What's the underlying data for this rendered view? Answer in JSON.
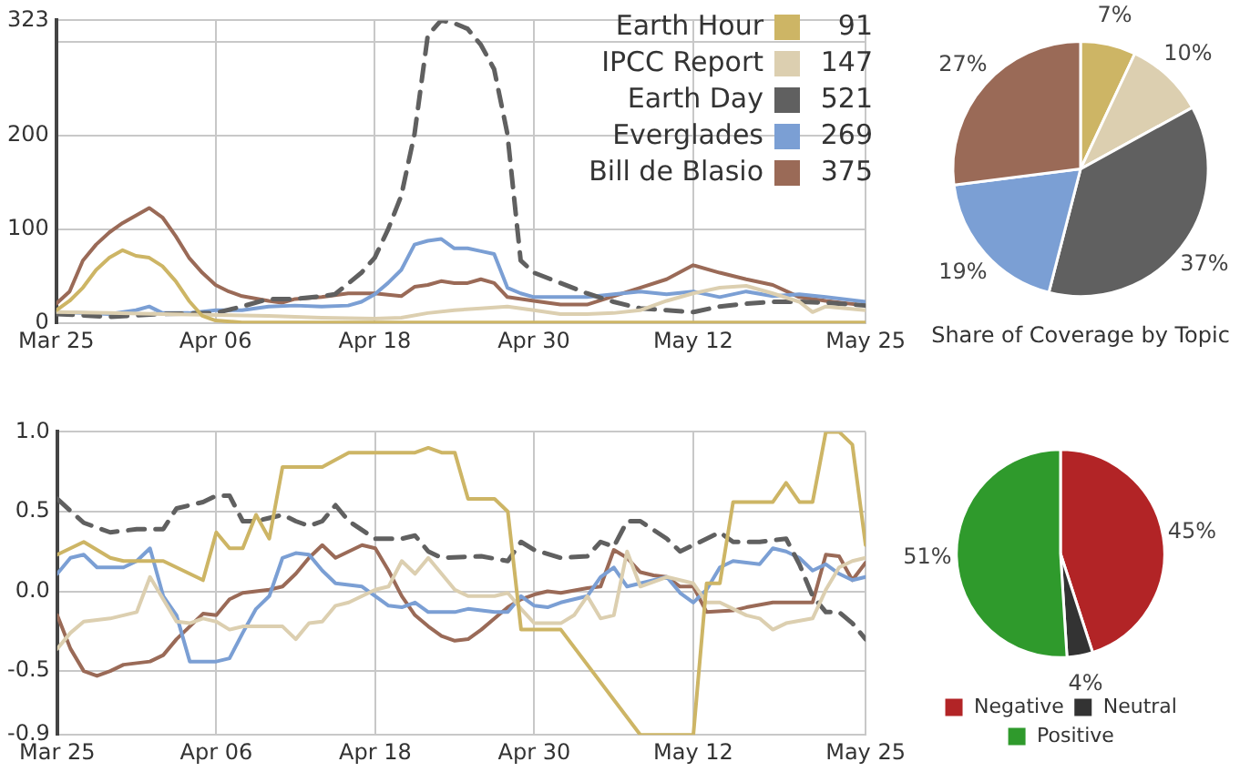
{
  "chart_data": [
    {
      "type": "line",
      "xlim": [
        "--03-25",
        "--05-25"
      ],
      "xticks": [
        {
          "value": "--03-25",
          "label": "Mar 25"
        },
        {
          "value": "--04-06",
          "label": "Apr 06"
        },
        {
          "value": "--04-18",
          "label": "Apr 18"
        },
        {
          "value": "--04-30",
          "label": "Apr 30"
        },
        {
          "value": "--05-12",
          "label": "May 12"
        },
        {
          "value": "--05-25",
          "label": "May 25"
        }
      ],
      "ylim": [
        0,
        323
      ],
      "yticks": [
        0,
        100,
        200,
        {
          "value": 300,
          "label": null
        },
        323
      ],
      "grid": true,
      "legend": "top right",
      "line_style": "solid",
      "annotations": [
        "91",
        "147",
        "521",
        "269",
        "375"
      ],
      "series": [
        {
          "name": "Earth Hour",
          "color": "#cdb565",
          "x": [
            "--03-25",
            "--03-26",
            "--03-27",
            "--03-28",
            "--03-29",
            "--03-30",
            "--03-31",
            "--04-01",
            "--04-02",
            "--04-03",
            "--04-04",
            "--04-05",
            "--04-06",
            "--04-08",
            "--04-18",
            "--04-30",
            "--05-12",
            "--05-25"
          ],
          "values": [
            14,
            24,
            38,
            57,
            70,
            78,
            72,
            70,
            61,
            45,
            24,
            8,
            3,
            1,
            1,
            1,
            1,
            1
          ]
        },
        {
          "name": "IPCC Report",
          "color": "#dccfb0",
          "x": [
            "--03-25",
            "--03-29",
            "--04-02",
            "--04-06",
            "--04-10",
            "--04-14",
            "--04-18",
            "--04-20",
            "--04-22",
            "--04-24",
            "--04-26",
            "--04-28",
            "--04-30",
            "--05-02",
            "--05-04",
            "--05-06",
            "--05-08",
            "--05-10",
            "--05-12",
            "--05-14",
            "--05-16",
            "--05-18",
            "--05-20",
            "--05-21",
            "--05-22",
            "--05-25"
          ],
          "values": [
            12,
            11,
            10,
            9,
            8,
            6,
            5,
            6,
            11,
            14,
            16,
            18,
            14,
            10,
            10,
            11,
            14,
            24,
            32,
            38,
            40,
            32,
            23,
            12,
            18,
            14
          ]
        },
        {
          "name": "Earth Day",
          "color": "#606060",
          "line_style": "dashed",
          "x": [
            "--03-25",
            "--03-29",
            "--04-02",
            "--04-06",
            "--04-08",
            "--04-10",
            "--04-12",
            "--04-14",
            "--04-15",
            "--04-17",
            "--04-18",
            "--04-19",
            "--04-20",
            "--04-21",
            "--04-22",
            "--04-23",
            "--04-24",
            "--04-25",
            "--04-26",
            "--04-27",
            "--04-28",
            "--04-29",
            "--04-30",
            "--05-02",
            "--05-04",
            "--05-06",
            "--05-08",
            "--05-10",
            "--05-12",
            "--05-14",
            "--05-16",
            "--05-18",
            "--05-20",
            "--05-22",
            "--05-25"
          ],
          "values": [
            10,
            7,
            10,
            11,
            18,
            26,
            26,
            29,
            31,
            54,
            70,
            100,
            136,
            202,
            307,
            323,
            320,
            314,
            297,
            271,
            202,
            67,
            54,
            43,
            32,
            23,
            16,
            14,
            12,
            18,
            21,
            23,
            23,
            22,
            19
          ]
        },
        {
          "name": "Everglades",
          "color": "#7b9fd4",
          "x": [
            "--03-25",
            "--03-27",
            "--03-29",
            "--03-31",
            "--04-01",
            "--04-02",
            "--04-04",
            "--04-06",
            "--04-08",
            "--04-10",
            "--04-12",
            "--04-14",
            "--04-16",
            "--04-17",
            "--04-18",
            "--04-19",
            "--04-20",
            "--04-21",
            "--04-22",
            "--04-23",
            "--04-24",
            "--04-25",
            "--04-26",
            "--04-27",
            "--04-28",
            "--04-29",
            "--04-30",
            "--05-02",
            "--05-04",
            "--05-06",
            "--05-08",
            "--05-10",
            "--05-12",
            "--05-14",
            "--05-16",
            "--05-18",
            "--05-20",
            "--05-22",
            "--05-25"
          ],
          "values": [
            12,
            11,
            10,
            14,
            18,
            11,
            11,
            14,
            14,
            18,
            19,
            18,
            19,
            23,
            31,
            43,
            57,
            84,
            88,
            90,
            80,
            80,
            77,
            74,
            38,
            32,
            28,
            28,
            28,
            31,
            34,
            31,
            34,
            28,
            34,
            29,
            31,
            28,
            23
          ]
        },
        {
          "name": "Bill de Blasio",
          "color": "#9a6a57",
          "x": [
            "--03-25",
            "--03-26",
            "--03-27",
            "--03-28",
            "--03-29",
            "--03-30",
            "--03-31",
            "--04-01",
            "--04-02",
            "--04-03",
            "--04-04",
            "--04-05",
            "--04-06",
            "--04-07",
            "--04-08",
            "--04-10",
            "--04-11",
            "--04-12",
            "--04-14",
            "--04-16",
            "--04-18",
            "--04-20",
            "--04-21",
            "--04-22",
            "--04-23",
            "--04-24",
            "--04-25",
            "--04-26",
            "--04-27",
            "--04-28",
            "--04-30",
            "--05-02",
            "--05-04",
            "--05-06",
            "--05-08",
            "--05-10",
            "--05-12",
            "--05-14",
            "--05-16",
            "--05-18",
            "--05-20",
            "--05-22",
            "--05-25"
          ],
          "values": [
            21,
            34,
            67,
            84,
            97,
            107,
            115,
            123,
            113,
            93,
            70,
            54,
            41,
            34,
            29,
            24,
            22,
            26,
            28,
            32,
            32,
            29,
            39,
            41,
            45,
            43,
            43,
            47,
            43,
            28,
            24,
            20,
            20,
            29,
            38,
            47,
            62,
            54,
            47,
            41,
            28,
            24,
            19
          ]
        }
      ]
    },
    {
      "type": "pie",
      "title": "Share of Coverage by Topic",
      "categories": [
        null,
        null,
        null,
        null,
        null
      ],
      "values": [
        7,
        10,
        37,
        19,
        27
      ],
      "colors": [
        "#cdb565",
        "#dccfb0",
        "#606060",
        "#7b9fd4",
        "#9a6a57"
      ],
      "value_labels": [
        "7%",
        "10%",
        "37%",
        "19%",
        "27%"
      ]
    },
    {
      "type": "line",
      "xlim": [
        "--03-25",
        "--05-25"
      ],
      "xticks": [
        {
          "value": "--03-25",
          "label": "Mar 25"
        },
        {
          "value": "--04-06",
          "label": "Apr 06"
        },
        {
          "value": "--04-18",
          "label": "Apr 18"
        },
        {
          "value": "--04-30",
          "label": "Apr 30"
        },
        {
          "value": "--05-12",
          "label": "May 12"
        },
        {
          "value": "--05-25",
          "label": "May 25"
        }
      ],
      "ylim": [
        -0.9,
        1
      ],
      "yticks": [
        -0.9,
        -0.5,
        {
          "value": 0,
          "label": "0.0"
        },
        0.5,
        {
          "value": 1,
          "label": "1.0"
        }
      ],
      "grid": true,
      "line_style": "solid",
      "series": [
        {
          "color": "#cdb565",
          "x": [
            "--03-25",
            "--03-27",
            "--03-29",
            "--03-30",
            "--04-02",
            "--04-04",
            "--04-05",
            "--04-06",
            "--04-07",
            "--04-08",
            "--04-09",
            "--04-10",
            "--04-11",
            "--04-14",
            "--04-16",
            "--04-21",
            "--04-22",
            "--04-23",
            "--04-24",
            "--04-25",
            "--04-27",
            "--04-28",
            "--04-29",
            "--05-02",
            "--05-08",
            "--05-12",
            "--05-13",
            "--05-14",
            "--05-15",
            "--05-18",
            "--05-19",
            "--05-20",
            "--05-21",
            "--05-22",
            "--05-23",
            "--05-24",
            "--05-25"
          ],
          "values": [
            0.23,
            0.31,
            0.21,
            0.19,
            0.19,
            0.11,
            0.07,
            0.37,
            0.27,
            0.27,
            0.48,
            0.33,
            0.78,
            0.78,
            0.87,
            0.87,
            0.9,
            0.87,
            0.87,
            0.58,
            0.58,
            0.5,
            -0.24,
            -0.24,
            -0.9,
            -0.9,
            0.05,
            0.05,
            0.56,
            0.56,
            0.68,
            0.56,
            0.56,
            1.0,
            1.0,
            0.92,
            0.29
          ]
        },
        {
          "color": "#dccfb0",
          "x": [
            "--03-25",
            "--03-26",
            "--03-27",
            "--03-29",
            "--03-31",
            "--04-01",
            "--04-02",
            "--04-03",
            "--04-04",
            "--04-05",
            "--04-06",
            "--04-07",
            "--04-08",
            "--04-09",
            "--04-11",
            "--04-12",
            "--04-13",
            "--04-14",
            "--04-15",
            "--04-16",
            "--04-17",
            "--04-18",
            "--04-19",
            "--04-20",
            "--04-21",
            "--04-22",
            "--04-23",
            "--04-24",
            "--04-25",
            "--04-27",
            "--04-28",
            "--04-29",
            "--04-30",
            "--05-02",
            "--05-03",
            "--05-04",
            "--05-05",
            "--05-06",
            "--05-07",
            "--05-08",
            "--05-10",
            "--05-12",
            "--05-13",
            "--05-14",
            "--05-16",
            "--05-17",
            "--05-18",
            "--05-19",
            "--05-21",
            "--05-22",
            "--05-23",
            "--05-24",
            "--05-25"
          ],
          "values": [
            -0.36,
            -0.26,
            -0.19,
            -0.17,
            -0.13,
            0.09,
            -0.05,
            -0.19,
            -0.2,
            -0.17,
            -0.19,
            -0.24,
            -0.22,
            -0.22,
            -0.22,
            -0.3,
            -0.2,
            -0.19,
            -0.09,
            -0.07,
            -0.03,
            0.01,
            0.03,
            0.19,
            0.11,
            0.21,
            0.11,
            0.01,
            -0.03,
            -0.03,
            -0.01,
            -0.11,
            -0.2,
            -0.2,
            -0.15,
            -0.03,
            -0.17,
            -0.15,
            0.25,
            0.03,
            0.09,
            0.05,
            -0.07,
            -0.07,
            -0.15,
            -0.17,
            -0.24,
            -0.2,
            -0.17,
            0.01,
            0.15,
            0.19,
            0.21
          ]
        },
        {
          "color": "#606060",
          "line_style": "dashed",
          "x": [
            "--03-25",
            "--03-27",
            "--03-29",
            "--03-31",
            "--04-02",
            "--04-03",
            "--04-05",
            "--04-06",
            "--04-07",
            "--04-08",
            "--04-09",
            "--04-10",
            "--04-11",
            "--04-12",
            "--04-13",
            "--04-14",
            "--04-15",
            "--04-16",
            "--04-18",
            "--04-20",
            "--04-21",
            "--04-22",
            "--04-23",
            "--04-26",
            "--04-28",
            "--04-29",
            "--04-30",
            "--05-02",
            "--05-04",
            "--05-05",
            "--05-06",
            "--05-07",
            "--05-08",
            "--05-10",
            "--05-11",
            "--05-12",
            "--05-14",
            "--05-15",
            "--05-17",
            "--05-19",
            "--05-20",
            "--05-21",
            "--05-22",
            "--05-23",
            "--05-24",
            "--05-25"
          ],
          "values": [
            0.58,
            0.43,
            0.37,
            0.39,
            0.39,
            0.52,
            0.56,
            0.6,
            0.6,
            0.44,
            0.44,
            0.46,
            0.48,
            0.44,
            0.41,
            0.44,
            0.54,
            0.44,
            0.33,
            0.33,
            0.35,
            0.25,
            0.21,
            0.22,
            0.19,
            0.31,
            0.26,
            0.21,
            0.22,
            0.31,
            0.28,
            0.44,
            0.44,
            0.33,
            0.25,
            0.29,
            0.37,
            0.31,
            0.31,
            0.33,
            0.17,
            -0.03,
            -0.13,
            -0.13,
            -0.2,
            -0.3
          ]
        },
        {
          "color": "#7b9fd4",
          "x": [
            "--03-25",
            "--03-26",
            "--03-27",
            "--03-28",
            "--03-30",
            "--03-31",
            "--04-01",
            "--04-02",
            "--04-03",
            "--04-04",
            "--04-06",
            "--04-07",
            "--04-08",
            "--04-09",
            "--04-10",
            "--04-11",
            "--04-12",
            "--04-13",
            "--04-14",
            "--04-15",
            "--04-17",
            "--04-18",
            "--04-19",
            "--04-20",
            "--04-21",
            "--04-22",
            "--04-24",
            "--04-25",
            "--04-27",
            "--04-28",
            "--04-29",
            "--04-30",
            "--05-01",
            "--05-02",
            "--05-04",
            "--05-05",
            "--05-06",
            "--05-07",
            "--05-08",
            "--05-10",
            "--05-11",
            "--05-12",
            "--05-13",
            "--05-14",
            "--05-15",
            "--05-17",
            "--05-18",
            "--05-19",
            "--05-20",
            "--05-21",
            "--05-22",
            "--05-23",
            "--05-24",
            "--05-25"
          ],
          "values": [
            0.11,
            0.21,
            0.23,
            0.15,
            0.15,
            0.19,
            0.27,
            -0.03,
            -0.15,
            -0.44,
            -0.44,
            -0.42,
            -0.26,
            -0.11,
            -0.03,
            0.21,
            0.24,
            0.23,
            0.13,
            0.05,
            0.03,
            -0.03,
            -0.09,
            -0.1,
            -0.07,
            -0.13,
            -0.13,
            -0.11,
            -0.13,
            -0.13,
            -0.03,
            -0.09,
            -0.1,
            -0.07,
            -0.03,
            0.09,
            0.15,
            0.03,
            0.05,
            0.09,
            -0.01,
            -0.07,
            0.01,
            0.15,
            0.19,
            0.17,
            0.27,
            0.25,
            0.21,
            0.13,
            0.17,
            0.11,
            0.07,
            0.09
          ]
        },
        {
          "color": "#9a6a57",
          "x": [
            "--03-25",
            "--03-26",
            "--03-27",
            "--03-28",
            "--03-29",
            "--03-30",
            "--04-01",
            "--04-02",
            "--04-03",
            "--04-04",
            "--04-05",
            "--04-06",
            "--04-07",
            "--04-08",
            "--04-10",
            "--04-11",
            "--04-12",
            "--04-13",
            "--04-14",
            "--04-15",
            "--04-16",
            "--04-17",
            "--04-18",
            "--04-19",
            "--04-20",
            "--04-21",
            "--04-22",
            "--04-23",
            "--04-24",
            "--04-25",
            "--04-26",
            "--04-27",
            "--04-28",
            "--04-29",
            "--04-30",
            "--05-01",
            "--05-02",
            "--05-04",
            "--05-05",
            "--05-06",
            "--05-07",
            "--05-08",
            "--05-09",
            "--05-10",
            "--05-11",
            "--05-12",
            "--05-13",
            "--05-15",
            "--05-16",
            "--05-18",
            "--05-21",
            "--05-22",
            "--05-23",
            "--05-24",
            "--05-25"
          ],
          "values": [
            -0.15,
            -0.36,
            -0.5,
            -0.53,
            -0.5,
            -0.46,
            -0.44,
            -0.4,
            -0.3,
            -0.22,
            -0.14,
            -0.15,
            -0.05,
            -0.01,
            0.01,
            0.03,
            0.11,
            0.21,
            0.29,
            0.21,
            0.25,
            0.29,
            0.27,
            0.13,
            -0.03,
            -0.15,
            -0.22,
            -0.28,
            -0.31,
            -0.3,
            -0.24,
            -0.17,
            -0.1,
            -0.05,
            -0.02,
            0,
            -0.01,
            0.02,
            0.03,
            0.26,
            0.21,
            0.12,
            0.1,
            0.09,
            0.03,
            0.03,
            -0.13,
            -0.12,
            -0.1,
            -0.07,
            -0.07,
            0.23,
            0.22,
            0.07,
            0.18
          ]
        }
      ]
    },
    {
      "type": "pie",
      "categories": [
        "Negative",
        "Neutral",
        "Positive"
      ],
      "values": [
        45,
        4,
        51
      ],
      "colors": [
        "#b22426",
        "#333333",
        "#2f9a2c"
      ],
      "value_labels": [
        "45%",
        "4%",
        "51%"
      ],
      "legend": "bottom"
    }
  ]
}
